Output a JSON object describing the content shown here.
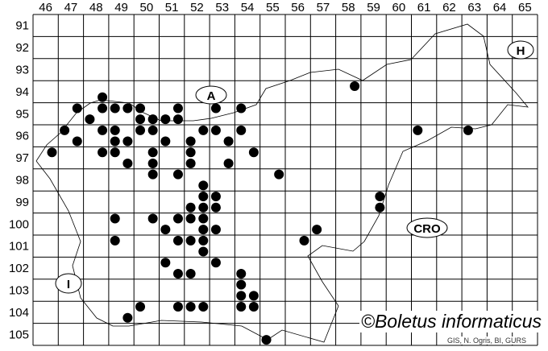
{
  "map": {
    "columns": [
      "46",
      "47",
      "48",
      "49",
      "50",
      "51",
      "52",
      "53",
      "54",
      "55",
      "56",
      "57",
      "58",
      "59",
      "60",
      "61",
      "62",
      "63",
      "64",
      "65"
    ],
    "rows": [
      "91",
      "92",
      "93",
      "94",
      "95",
      "96",
      "97",
      "98",
      "99",
      "100",
      "101",
      "102",
      "103",
      "104",
      "105"
    ],
    "country_labels": {
      "austria": "A",
      "hungary": "H",
      "croatia": "CRO",
      "italy": "I"
    },
    "dot_color": "#000000",
    "records_grid": [
      [
        48.75,
        94.75
      ],
      [
        47.75,
        95.25
      ],
      [
        48.75,
        95.25
      ],
      [
        49.25,
        95.25
      ],
      [
        49.75,
        95.25
      ],
      [
        50.25,
        95.25
      ],
      [
        51.75,
        95.25
      ],
      [
        53.25,
        95.25
      ],
      [
        54.25,
        95.25
      ],
      [
        48.25,
        95.75
      ],
      [
        50.25,
        95.75
      ],
      [
        50.75,
        95.75
      ],
      [
        51.25,
        95.75
      ],
      [
        51.75,
        95.75
      ],
      [
        47.25,
        96.25
      ],
      [
        48.75,
        96.25
      ],
      [
        49.25,
        96.25
      ],
      [
        50.25,
        96.25
      ],
      [
        50.75,
        96.25
      ],
      [
        52.75,
        96.25
      ],
      [
        53.25,
        96.25
      ],
      [
        54.25,
        96.25
      ],
      [
        47.75,
        96.75
      ],
      [
        49.25,
        96.75
      ],
      [
        49.75,
        96.75
      ],
      [
        51.25,
        96.75
      ],
      [
        52.25,
        96.75
      ],
      [
        53.75,
        96.75
      ],
      [
        46.75,
        97.25
      ],
      [
        48.75,
        97.25
      ],
      [
        49.25,
        97.25
      ],
      [
        50.75,
        97.25
      ],
      [
        52.25,
        97.25
      ],
      [
        54.75,
        97.25
      ],
      [
        49.75,
        97.75
      ],
      [
        50.75,
        97.75
      ],
      [
        52.25,
        97.75
      ],
      [
        53.75,
        97.75
      ],
      [
        50.75,
        98.25
      ],
      [
        51.75,
        98.25
      ],
      [
        52.75,
        98.75
      ],
      [
        52.75,
        99.25
      ],
      [
        53.25,
        99.25
      ],
      [
        52.25,
        99.75
      ],
      [
        52.75,
        99.75
      ],
      [
        53.25,
        99.75
      ],
      [
        49.25,
        100.25
      ],
      [
        50.75,
        100.25
      ],
      [
        51.75,
        100.25
      ],
      [
        52.25,
        100.25
      ],
      [
        52.75,
        100.25
      ],
      [
        51.25,
        100.75
      ],
      [
        52.75,
        100.75
      ],
      [
        53.25,
        100.75
      ],
      [
        49.25,
        101.25
      ],
      [
        51.75,
        101.25
      ],
      [
        52.25,
        101.25
      ],
      [
        52.75,
        101.25
      ],
      [
        52.75,
        101.75
      ],
      [
        51.25,
        102.25
      ],
      [
        53.25,
        102.25
      ],
      [
        51.75,
        102.75
      ],
      [
        52.25,
        102.75
      ],
      [
        54.25,
        102.75
      ],
      [
        54.25,
        103.25
      ],
      [
        54.25,
        103.75
      ],
      [
        54.75,
        103.75
      ],
      [
        50.25,
        104.25
      ],
      [
        51.75,
        104.25
      ],
      [
        52.25,
        104.25
      ],
      [
        52.75,
        104.25
      ],
      [
        54.25,
        104.25
      ],
      [
        54.75,
        104.25
      ],
      [
        49.75,
        104.75
      ],
      [
        55.25,
        105.75
      ],
      [
        58.75,
        94.25
      ],
      [
        61.25,
        96.25
      ],
      [
        63.25,
        96.25
      ],
      [
        55.75,
        98.25
      ],
      [
        59.75,
        99.25
      ],
      [
        59.75,
        99.75
      ],
      [
        57.25,
        100.75
      ],
      [
        56.75,
        101.25
      ]
    ]
  },
  "credit": "©Boletus informaticus",
  "source": "GIS, N. Ogris, BI, GURS"
}
